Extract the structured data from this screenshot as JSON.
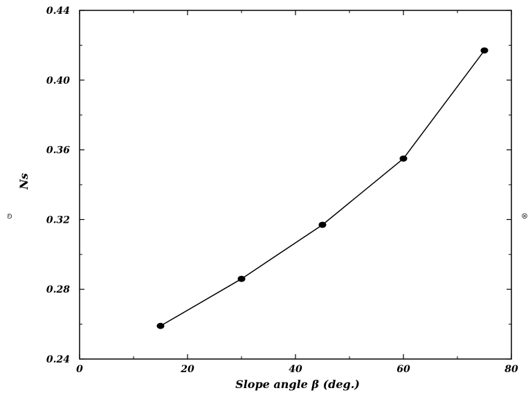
{
  "chart_data": {
    "type": "line",
    "xlabel": "Slope angle β (deg.)",
    "ylabel": "Ns",
    "xlim": [
      0,
      80
    ],
    "ylim": [
      0.24,
      0.44
    ],
    "x_ticks": [
      0,
      20,
      40,
      60,
      80
    ],
    "x_tick_labels": [
      "0",
      "20",
      "40",
      "60",
      "80"
    ],
    "y_ticks": [
      0.24,
      0.28,
      0.32,
      0.36,
      0.4,
      0.44
    ],
    "y_tick_labels": [
      "0.24",
      "0.28",
      "0.32",
      "0.36",
      "0.40",
      "0.44"
    ],
    "grid": false,
    "series": [
      {
        "x": [
          15,
          30,
          45,
          60,
          75
        ],
        "y": [
          0.259,
          0.286,
          0.317,
          0.355,
          0.417
        ],
        "marker": "circle",
        "color": "#000000"
      }
    ]
  },
  "stray_marks": [
    "˘",
    "˘",
    "˘",
    "ʚ",
    "⊗"
  ]
}
